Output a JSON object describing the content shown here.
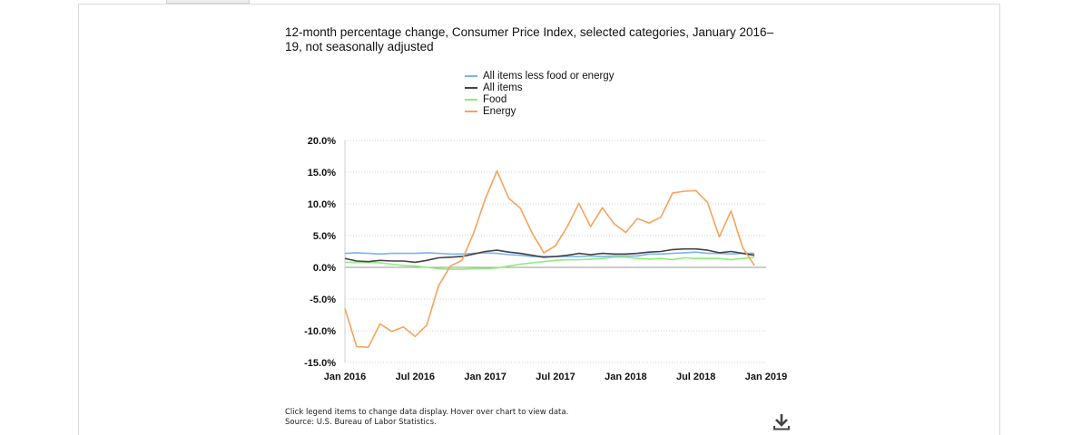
{
  "chart": {
    "title": "12-month percentage change, Consumer Price Index, selected categories, January 2016–19, not seasonally adjusted",
    "footnote_line1": "Click legend items to change data display. Hover over chart to view data.",
    "footnote_line2": "Source: U.S. Bureau of Labor Statistics."
  },
  "legend": [
    {
      "label": "All items less food or energy",
      "color": "#7cb5ec"
    },
    {
      "label": "All items",
      "color": "#434348"
    },
    {
      "label": "Food",
      "color": "#90ed7d"
    },
    {
      "label": "Energy",
      "color": "#f7a35c"
    }
  ],
  "chart_data": {
    "type": "line",
    "title": "12-month percentage change, Consumer Price Index, selected categories, January 2016–19, not seasonally adjusted",
    "xlabel": "",
    "ylabel": "",
    "ylim": [
      -15,
      20
    ],
    "yticks": [
      "20.0%",
      "15.0%",
      "10.0%",
      "5.0%",
      "0.0%",
      "-5.0%",
      "-10.0%",
      "-15.0%"
    ],
    "ytick_values": [
      20,
      15,
      10,
      5,
      0,
      -5,
      -10,
      -15
    ],
    "xticks": [
      "Jan 2016",
      "Jul 2016",
      "Jan 2017",
      "Jul 2017",
      "Jan 2018",
      "Jul 2018",
      "Jan 2019"
    ],
    "xtick_months": [
      0,
      6,
      12,
      18,
      24,
      30,
      36
    ],
    "grid": true,
    "legend_position": "top-center",
    "x": [
      "Jan 2016",
      "Feb 2016",
      "Mar 2016",
      "Apr 2016",
      "May 2016",
      "Jun 2016",
      "Jul 2016",
      "Aug 2016",
      "Sep 2016",
      "Oct 2016",
      "Nov 2016",
      "Dec 2016",
      "Jan 2017",
      "Feb 2017",
      "Mar 2017",
      "Apr 2017",
      "May 2017",
      "Jun 2017",
      "Jul 2017",
      "Aug 2017",
      "Sep 2017",
      "Oct 2017",
      "Nov 2017",
      "Dec 2017",
      "Jan 2018",
      "Feb 2018",
      "Mar 2018",
      "Apr 2018",
      "May 2018",
      "Jun 2018",
      "Jul 2018",
      "Aug 2018",
      "Sep 2018",
      "Oct 2018",
      "Nov 2018",
      "Dec 2018"
    ],
    "series": [
      {
        "name": "All items less food or energy",
        "color": "#7cb5ec",
        "values": [
          2.2,
          2.3,
          2.2,
          2.1,
          2.2,
          2.2,
          2.2,
          2.3,
          2.2,
          2.1,
          2.1,
          2.2,
          2.3,
          2.2,
          2.0,
          1.9,
          1.7,
          1.7,
          1.7,
          1.7,
          1.7,
          1.8,
          1.7,
          1.8,
          1.8,
          1.8,
          2.1,
          2.1,
          2.2,
          2.3,
          2.4,
          2.2,
          2.2,
          2.1,
          2.2,
          2.2
        ]
      },
      {
        "name": "All items",
        "color": "#434348",
        "values": [
          1.4,
          1.0,
          0.9,
          1.1,
          1.0,
          1.0,
          0.8,
          1.1,
          1.5,
          1.6,
          1.7,
          2.1,
          2.5,
          2.7,
          2.4,
          2.2,
          1.9,
          1.6,
          1.7,
          1.9,
          2.2,
          2.0,
          2.2,
          2.1,
          2.1,
          2.2,
          2.4,
          2.5,
          2.8,
          2.9,
          2.9,
          2.7,
          2.3,
          2.5,
          2.2,
          1.9
        ]
      },
      {
        "name": "Food",
        "color": "#90ed7d",
        "values": [
          0.8,
          0.8,
          0.8,
          0.7,
          0.5,
          0.3,
          0.2,
          0.0,
          -0.2,
          -0.3,
          -0.3,
          -0.2,
          -0.2,
          -0.1,
          0.2,
          0.5,
          0.7,
          0.9,
          1.1,
          1.2,
          1.2,
          1.3,
          1.4,
          1.6,
          1.6,
          1.4,
          1.3,
          1.4,
          1.2,
          1.5,
          1.4,
          1.4,
          1.4,
          1.2,
          1.4,
          1.6
        ]
      },
      {
        "name": "Energy",
        "color": "#f7a35c",
        "values": [
          -6.5,
          -12.5,
          -12.6,
          -8.9,
          -10.1,
          -9.4,
          -10.9,
          -9.1,
          -2.9,
          0.2,
          1.1,
          5.4,
          10.8,
          15.2,
          10.9,
          9.3,
          5.4,
          2.3,
          3.4,
          6.4,
          10.1,
          6.4,
          9.4,
          6.9,
          5.5,
          7.7,
          7.0,
          7.9,
          11.7,
          12.0,
          12.1,
          10.2,
          4.8,
          8.9,
          3.1,
          0.3
        ]
      }
    ]
  }
}
